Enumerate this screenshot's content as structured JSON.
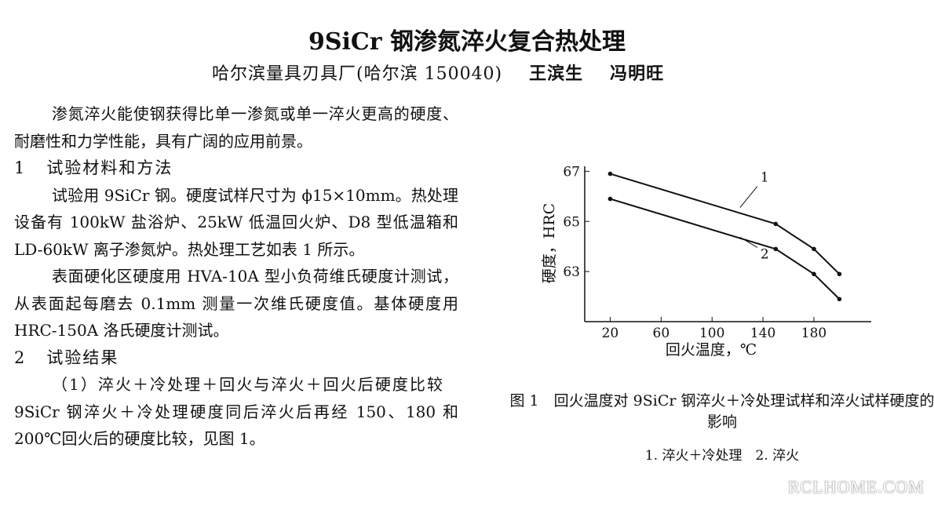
{
  "header": {
    "title": "9SiCr 钢渗氮淬火复合热处理",
    "affiliation": "哈尔滨量具刃具厂(哈尔滨 150040)",
    "authors": [
      "王滨生",
      "冯明旺"
    ]
  },
  "body": {
    "p1": "渗氮淬火能使钢获得比单一渗氮或单一淬火更高的硬度、耐磨性和力学性能，具有广阔的应用前景。",
    "section1": {
      "number": "1",
      "title": "试验材料和方法"
    },
    "p2": "试验用 9SiCr 钢。硬度试样尺寸为 ϕ15×10mm。热处理设备有 100kW 盐浴炉、25kW 低温回火炉、D8 型低温箱和 LD-60kW 离子渗氮炉。热处理工艺如表 1 所示。",
    "p3": "表面硬化区硬度用 HVA-10A 型小负荷维氏硬度计测试，从表面起每磨去 0.1mm 测量一次维氏硬度值。基体硬度用 HRC-150A 洛氏硬度计测试。",
    "section2": {
      "number": "2",
      "title": "试验结果"
    },
    "p4": {
      "lead": "（1）淬火＋冷处理＋回火与淬火＋回火后硬度比较",
      "text": "9SiCr 钢淬火＋冷处理硬度同后淬火后再经 150、180 和 200℃回火后的硬度比较，见图 1。"
    }
  },
  "figure": {
    "type": "line",
    "x_label": "回火温度，℃",
    "y_label": "硬度，HRC",
    "x": [
      20,
      150,
      180,
      200
    ],
    "series": [
      {
        "name": "1",
        "color": "#111111",
        "values": [
          66.9,
          64.9,
          63.9,
          62.9
        ]
      },
      {
        "name": "2",
        "color": "#111111",
        "values": [
          65.9,
          63.9,
          62.9,
          61.9
        ]
      }
    ],
    "xlim": [
      0,
      225
    ],
    "xticks": [
      20,
      60,
      100,
      140,
      180
    ],
    "ylim": [
      61,
      67.2
    ],
    "yticks": [
      63,
      65,
      67
    ],
    "caption": {
      "number": "图 1",
      "text": "回火温度对 9SiCr 钢淬火＋冷处理试样和淬火试样硬度的影响",
      "legend": [
        "1. 淬火＋冷处理",
        "2. 淬火"
      ]
    }
  },
  "watermark": "RCLHOME.COM"
}
